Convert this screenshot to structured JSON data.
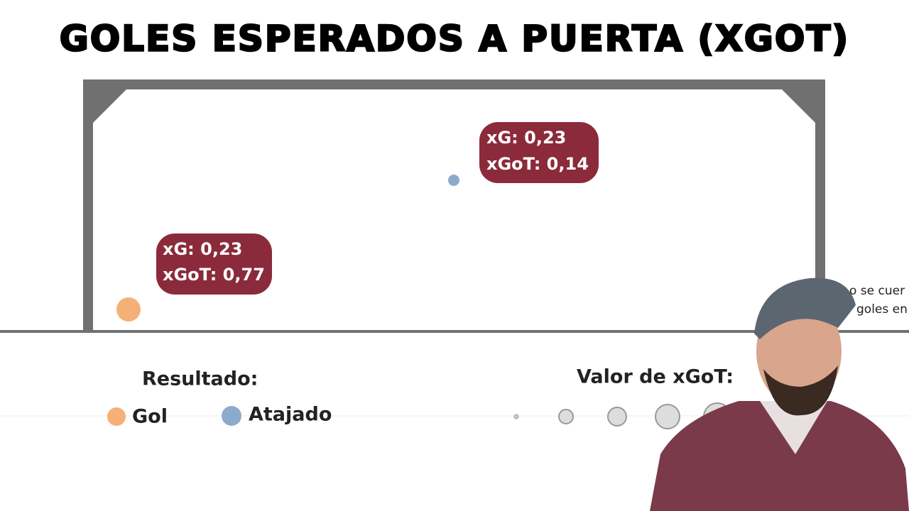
{
  "header": {
    "title": "GOLES ESPERADOS A PUERTA (XGOT)"
  },
  "shots": [
    {
      "xg": "xG: 0,23",
      "xgot": "xGoT: 0,14"
    },
    {
      "xg": "xG: 0,23",
      "xgot": "xGoT: 0,77"
    }
  ],
  "legend": {
    "result_title": "Resultado:",
    "results": [
      "Gol",
      "Atajado"
    ],
    "size_title": "Valor de xGoT:"
  },
  "side_text": [
    "o se cuer",
    "goles en"
  ]
}
